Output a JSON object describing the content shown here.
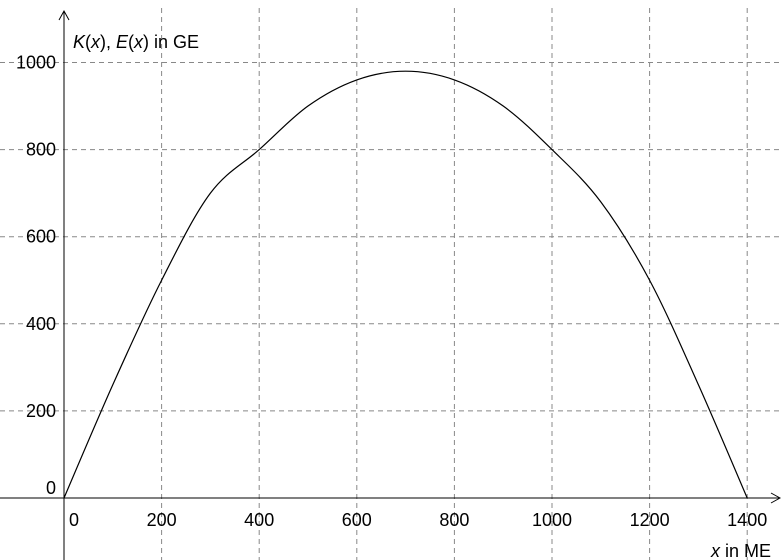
{
  "chart_data": {
    "type": "line",
    "ylabel_parts": [
      {
        "text": "K",
        "italic": true
      },
      {
        "text": "(",
        "italic": false
      },
      {
        "text": "x",
        "italic": true
      },
      {
        "text": "), ",
        "italic": false
      },
      {
        "text": "E",
        "italic": true
      },
      {
        "text": "(",
        "italic": false
      },
      {
        "text": "x",
        "italic": true
      },
      {
        "text": ") in GE",
        "italic": false
      }
    ],
    "xlabel_parts": [
      {
        "text": "x",
        "italic": true
      },
      {
        "text": " in ME",
        "italic": false
      }
    ],
    "x_ticks": [
      {
        "value": 0,
        "label": "0"
      },
      {
        "value": 200,
        "label": "200"
      },
      {
        "value": 400,
        "label": "400"
      },
      {
        "value": 600,
        "label": "600"
      },
      {
        "value": 800,
        "label": "800"
      },
      {
        "value": 1000,
        "label": "1000"
      },
      {
        "value": 1200,
        "label": "1200"
      },
      {
        "value": 1400,
        "label": "1400"
      }
    ],
    "y_ticks": [
      {
        "value": 0,
        "label": "0"
      },
      {
        "value": 200,
        "label": "200"
      },
      {
        "value": 400,
        "label": "400"
      },
      {
        "value": 600,
        "label": "600"
      },
      {
        "value": 800,
        "label": "800"
      },
      {
        "value": 1000,
        "label": "1000"
      }
    ],
    "xlim": [
      -20,
      1460
    ],
    "ylim": [
      -120,
      1100
    ],
    "grid": true,
    "series": [
      {
        "color": "#000000",
        "x": [
          0,
          100,
          200,
          300,
          400,
          500,
          600,
          700,
          800,
          900,
          1000,
          1100,
          1200,
          1300,
          1400
        ],
        "y": [
          0,
          260,
          500,
          700,
          800,
          900,
          960,
          980,
          960,
          900,
          800,
          680,
          500,
          260,
          0
        ]
      }
    ]
  }
}
